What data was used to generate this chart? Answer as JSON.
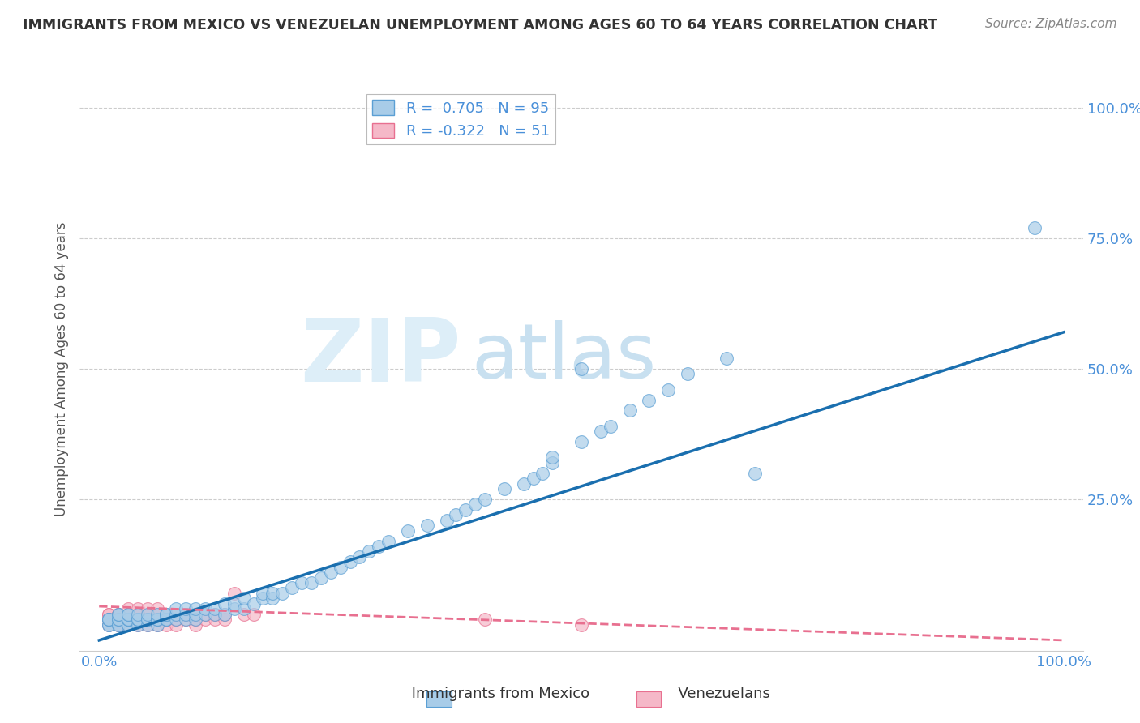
{
  "title": "IMMIGRANTS FROM MEXICO VS VENEZUELAN UNEMPLOYMENT AMONG AGES 60 TO 64 YEARS CORRELATION CHART",
  "source": "Source: ZipAtlas.com",
  "ylabel": "Unemployment Among Ages 60 to 64 years",
  "xlim": [
    -0.02,
    1.02
  ],
  "ylim": [
    -0.04,
    1.04
  ],
  "xticks": [
    0.0,
    1.0
  ],
  "yticks": [
    0.0,
    0.25,
    0.5,
    0.75,
    1.0
  ],
  "xticklabels": [
    "0.0%",
    "100.0%"
  ],
  "yticklabels": [
    "",
    "25.0%",
    "50.0%",
    "75.0%",
    "100.0%"
  ],
  "blue_R": 0.705,
  "blue_N": 95,
  "pink_R": -0.322,
  "pink_N": 51,
  "blue_color": "#a8cce8",
  "pink_color": "#f5b8c8",
  "blue_edge_color": "#5b9fd4",
  "pink_edge_color": "#e87090",
  "blue_line_color": "#1a6faf",
  "pink_line_color": "#e87090",
  "watermark_ZIP_color": "#ddeef8",
  "watermark_atlas_color": "#c8e0f0",
  "background_color": "#ffffff",
  "grid_color": "#cccccc",
  "title_color": "#333333",
  "axis_tick_color": "#4a90d9",
  "legend_text_color": "#4a90d9",
  "source_color": "#888888",
  "ylabel_color": "#555555",
  "blue_line_x0": 0.0,
  "blue_line_y0": -0.02,
  "blue_line_x1": 1.0,
  "blue_line_y1": 0.57,
  "pink_line_x0": 0.0,
  "pink_line_y0": 0.045,
  "pink_line_x1": 1.0,
  "pink_line_y1": -0.02,
  "blue_x": [
    0.01,
    0.01,
    0.01,
    0.01,
    0.01,
    0.02,
    0.02,
    0.02,
    0.02,
    0.02,
    0.02,
    0.03,
    0.03,
    0.03,
    0.03,
    0.03,
    0.03,
    0.03,
    0.04,
    0.04,
    0.04,
    0.04,
    0.04,
    0.05,
    0.05,
    0.05,
    0.05,
    0.06,
    0.06,
    0.06,
    0.06,
    0.07,
    0.07,
    0.07,
    0.07,
    0.08,
    0.08,
    0.08,
    0.09,
    0.09,
    0.09,
    0.1,
    0.1,
    0.1,
    0.11,
    0.11,
    0.12,
    0.12,
    0.13,
    0.13,
    0.14,
    0.14,
    0.15,
    0.15,
    0.16,
    0.17,
    0.17,
    0.18,
    0.18,
    0.19,
    0.2,
    0.21,
    0.22,
    0.23,
    0.24,
    0.25,
    0.26,
    0.27,
    0.28,
    0.29,
    0.3,
    0.32,
    0.34,
    0.36,
    0.37,
    0.38,
    0.39,
    0.4,
    0.42,
    0.44,
    0.45,
    0.46,
    0.47,
    0.47,
    0.5,
    0.5,
    0.52,
    0.53,
    0.55,
    0.57,
    0.59,
    0.61,
    0.65,
    0.68,
    0.97
  ],
  "blue_y": [
    0.01,
    0.01,
    0.02,
    0.02,
    0.02,
    0.01,
    0.01,
    0.02,
    0.02,
    0.03,
    0.03,
    0.01,
    0.01,
    0.02,
    0.02,
    0.02,
    0.03,
    0.03,
    0.01,
    0.02,
    0.02,
    0.02,
    0.03,
    0.01,
    0.02,
    0.02,
    0.03,
    0.01,
    0.02,
    0.02,
    0.03,
    0.02,
    0.02,
    0.03,
    0.03,
    0.02,
    0.03,
    0.04,
    0.02,
    0.03,
    0.04,
    0.02,
    0.03,
    0.04,
    0.03,
    0.04,
    0.03,
    0.04,
    0.03,
    0.05,
    0.04,
    0.05,
    0.04,
    0.06,
    0.05,
    0.06,
    0.07,
    0.06,
    0.07,
    0.07,
    0.08,
    0.09,
    0.09,
    0.1,
    0.11,
    0.12,
    0.13,
    0.14,
    0.15,
    0.16,
    0.17,
    0.19,
    0.2,
    0.21,
    0.22,
    0.23,
    0.24,
    0.25,
    0.27,
    0.28,
    0.29,
    0.3,
    0.32,
    0.33,
    0.36,
    0.5,
    0.38,
    0.39,
    0.42,
    0.44,
    0.46,
    0.49,
    0.52,
    0.3,
    0.77
  ],
  "pink_x": [
    0.01,
    0.01,
    0.01,
    0.01,
    0.01,
    0.02,
    0.02,
    0.02,
    0.02,
    0.02,
    0.02,
    0.03,
    0.03,
    0.03,
    0.03,
    0.03,
    0.04,
    0.04,
    0.04,
    0.04,
    0.04,
    0.05,
    0.05,
    0.05,
    0.05,
    0.06,
    0.06,
    0.06,
    0.06,
    0.07,
    0.07,
    0.07,
    0.08,
    0.08,
    0.08,
    0.09,
    0.09,
    0.1,
    0.1,
    0.1,
    0.11,
    0.11,
    0.12,
    0.12,
    0.13,
    0.13,
    0.14,
    0.15,
    0.16,
    0.4,
    0.5
  ],
  "pink_y": [
    0.01,
    0.02,
    0.02,
    0.03,
    0.03,
    0.01,
    0.01,
    0.02,
    0.02,
    0.03,
    0.03,
    0.01,
    0.02,
    0.02,
    0.03,
    0.04,
    0.01,
    0.02,
    0.03,
    0.03,
    0.04,
    0.01,
    0.02,
    0.03,
    0.04,
    0.01,
    0.02,
    0.03,
    0.04,
    0.01,
    0.02,
    0.03,
    0.01,
    0.02,
    0.03,
    0.02,
    0.03,
    0.01,
    0.02,
    0.03,
    0.02,
    0.03,
    0.02,
    0.03,
    0.02,
    0.03,
    0.07,
    0.03,
    0.03,
    0.02,
    0.01
  ]
}
